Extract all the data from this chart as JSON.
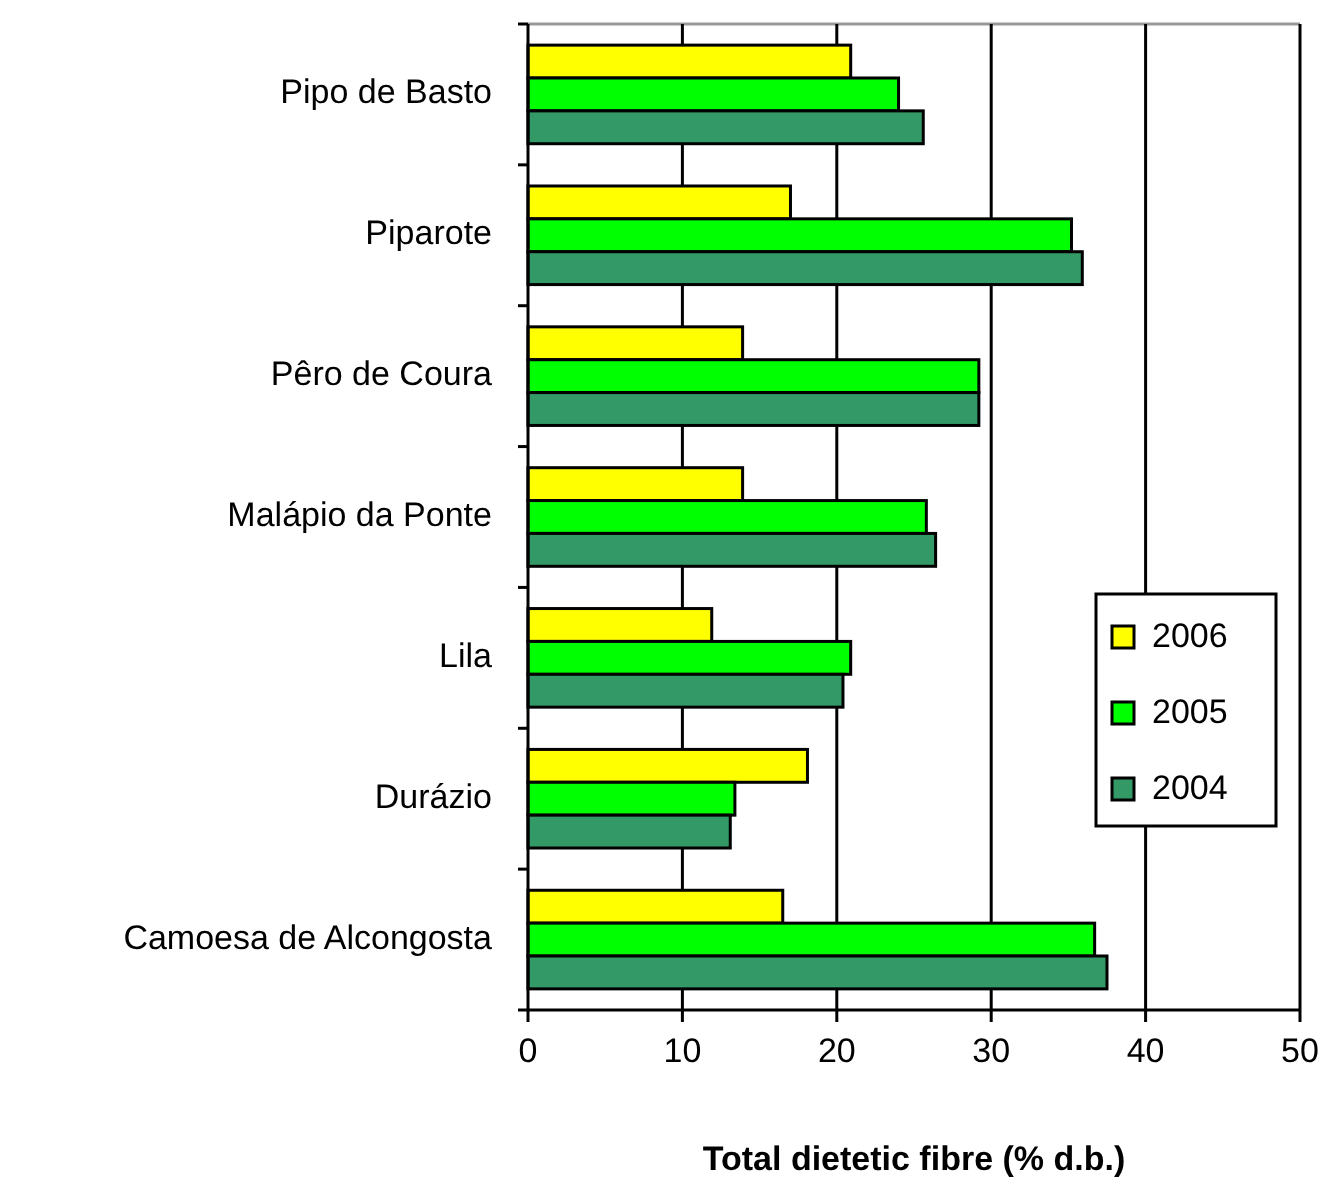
{
  "chart_data": {
    "type": "bar",
    "orientation": "horizontal",
    "xlabel": "Total dietetic fibre (% d.b.)",
    "categories": [
      "Pipo de Basto",
      "Piparote",
      "Pêro de Coura",
      "Malápio da Ponte",
      "Lila",
      "Durázio",
      "Camoesa de Alcongosta"
    ],
    "series": [
      {
        "name": "2006",
        "color": "#ffff00",
        "values": [
          20.9,
          17.0,
          13.9,
          13.9,
          11.9,
          18.1,
          16.5
        ]
      },
      {
        "name": "2005",
        "color": "#00ff00",
        "values": [
          24.0,
          35.2,
          29.2,
          25.8,
          20.9,
          13.4,
          36.7
        ]
      },
      {
        "name": "2004",
        "color": "#339966",
        "values": [
          25.6,
          35.9,
          29.2,
          26.4,
          20.4,
          13.1,
          37.5
        ]
      }
    ],
    "xlim": [
      0,
      50
    ],
    "xticks": [
      0,
      10,
      20,
      30,
      40,
      50
    ],
    "grid": "x",
    "legend": "right"
  }
}
